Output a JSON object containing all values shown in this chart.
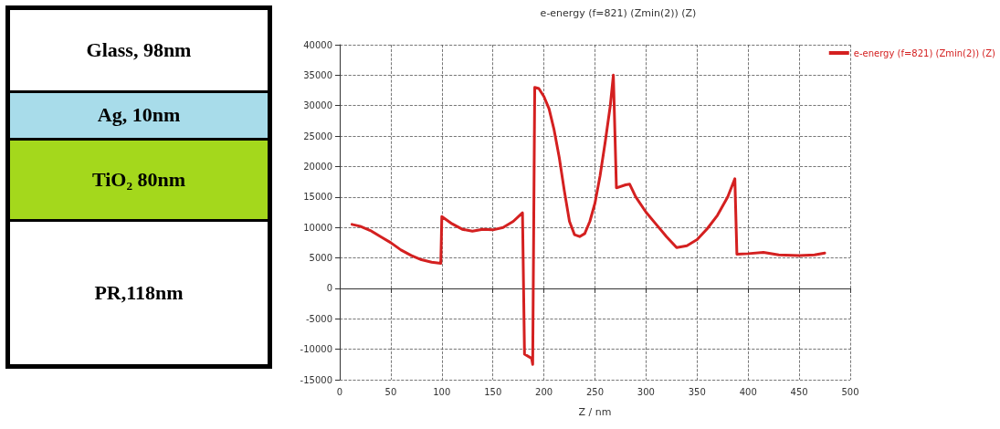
{
  "chart_data": [
    {
      "type": "other",
      "annotations": [
        "Glass, 98nm",
        "Ag, 10nm",
        "TiO₂ 80nm",
        "PR,118nm"
      ],
      "colors": [
        "#ffffff",
        "#a8dcea",
        "#a4d81c",
        "#ffffff"
      ]
    },
    {
      "type": "line",
      "title": "e-energy (f=821) (Zmin(2)) (Z)",
      "xlabel": "Z / nm",
      "xlim": [
        0,
        500
      ],
      "xticks": [
        0,
        50,
        100,
        150,
        200,
        250,
        300,
        350,
        400,
        450,
        500
      ],
      "ylim": [
        -15000,
        40000
      ],
      "yticks": [
        -15000,
        -10000,
        -5000,
        0,
        5000,
        10000,
        15000,
        20000,
        25000,
        30000,
        35000,
        40000
      ],
      "grid": true,
      "legend": "top right",
      "marker": "none",
      "line_style": "solid",
      "series": [
        {
          "name": "e-energy (f=821) (Zmin(2)) (Z)",
          "color": "#d42020",
          "x": [
            12,
            20,
            30,
            40,
            50,
            60,
            70,
            80,
            90,
            99,
            100,
            110,
            120,
            130,
            140,
            150,
            160,
            170,
            179,
            181,
            188,
            189,
            191,
            195,
            200,
            205,
            210,
            215,
            220,
            225,
            230,
            235,
            240,
            245,
            250,
            255,
            260,
            265,
            268,
            271,
            280,
            284,
            290,
            300,
            310,
            320,
            330,
            340,
            350,
            360,
            370,
            380,
            387,
            389,
            400,
            415,
            430,
            450,
            465,
            475
          ],
          "values": [
            10500,
            10200,
            9500,
            8500,
            7500,
            6300,
            5400,
            4700,
            4300,
            4100,
            11800,
            10600,
            9700,
            9400,
            9700,
            9600,
            10000,
            11000,
            12400,
            -10800,
            -11500,
            -12500,
            33000,
            32800,
            31500,
            29500,
            26000,
            21500,
            16000,
            11000,
            8800,
            8500,
            9000,
            11000,
            14000,
            18500,
            24000,
            30000,
            35000,
            16500,
            17000,
            17100,
            15000,
            12500,
            10500,
            8500,
            6700,
            7000,
            8000,
            9800,
            12000,
            15000,
            18000,
            5600,
            5700,
            5900,
            5500,
            5400,
            5500,
            5800
          ]
        }
      ]
    }
  ]
}
